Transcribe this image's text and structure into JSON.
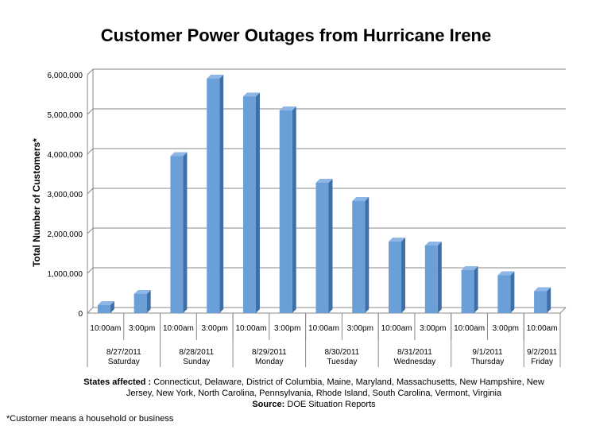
{
  "chart_data": {
    "type": "bar",
    "title": "Customer Power Outages from Hurricane Irene",
    "ylabel": "Total Number of Customers*",
    "xlabel": "",
    "ylim": [
      0,
      6000000
    ],
    "yticks": [
      "0",
      "1,000,000",
      "2,000,000",
      "3,000,000",
      "4,000,000",
      "5,000,000",
      "6,000,000"
    ],
    "grid": true,
    "legend": "none",
    "bar_color": "#6a9fd8",
    "categories": [
      "10:00am",
      "3:00pm",
      "10:00am",
      "3:00pm",
      "10:00am",
      "3:00pm",
      "10:00am",
      "3:00pm",
      "10:00am",
      "3:00pm",
      "10:00am",
      "3:00pm",
      "10:00am"
    ],
    "values": [
      200000,
      480000,
      3950000,
      5900000,
      5450000,
      5100000,
      3280000,
      2820000,
      1800000,
      1700000,
      1080000,
      950000,
      550000
    ],
    "groups": [
      {
        "date": "8/27/2011",
        "day": "Saturday",
        "span": 2
      },
      {
        "date": "8/28/2011",
        "day": "Sunday",
        "span": 2
      },
      {
        "date": "8/29/2011",
        "day": "Monday",
        "span": 2
      },
      {
        "date": "8/30/2011",
        "day": "Tuesday",
        "span": 2
      },
      {
        "date": "8/31/2011",
        "day": "Wednesday",
        "span": 2
      },
      {
        "date": "9/1/2011",
        "day": "Thursday",
        "span": 2
      },
      {
        "date": "9/2/2011",
        "day": "Friday",
        "span": 1
      }
    ]
  },
  "notes": {
    "states_label": "States affected :",
    "states_text": "Connecticut, Delaware, District of Columbia, Maine, Maryland, Massachusetts, New Hampshire, New Jersey, New York, North Carolina, Pennsylvania, Rhode Island, South Carolina, Vermont, Virginia",
    "source_label": "Source:",
    "source_text": "DOE Situation Reports",
    "footnote": "*Customer means a household or business"
  }
}
